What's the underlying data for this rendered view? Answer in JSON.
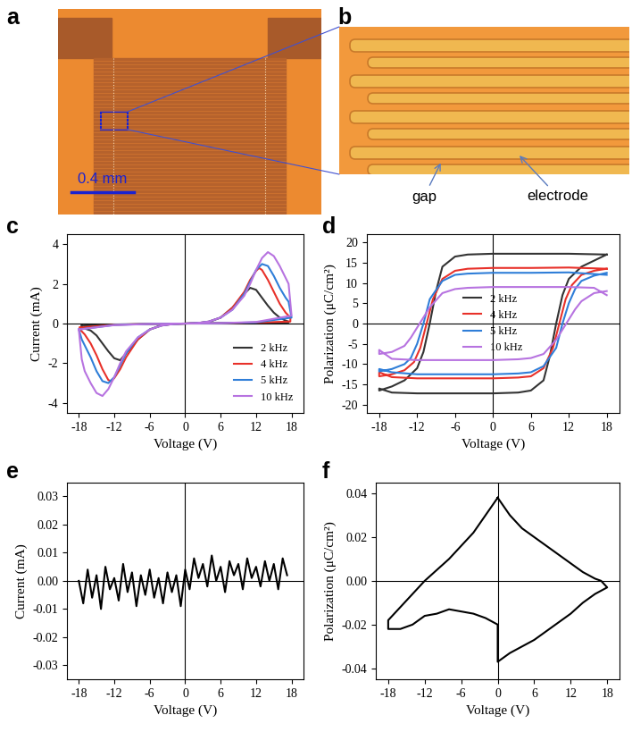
{
  "panel_labels": [
    "a",
    "b",
    "c",
    "d",
    "e",
    "f"
  ],
  "micrographs": {
    "scale_bar": "0.4 mm",
    "labels": [
      "gap",
      "electrode"
    ]
  },
  "chart_data": [
    {
      "type": "line",
      "xlabel": "Voltage (V)",
      "ylabel": "Current (mA)",
      "xlim": [
        -20,
        20
      ],
      "xticks": [
        -18,
        -12,
        -6,
        0,
        6,
        12,
        18
      ],
      "ylim": [
        -4.5,
        4.5
      ],
      "yticks": [
        -4,
        -2,
        0,
        2,
        4
      ],
      "legend": "lower right",
      "series": [
        {
          "name": "2 kHz",
          "color": "#333333",
          "x": [
            -17.5,
            -12,
            -6,
            0,
            2,
            4,
            6,
            8,
            10,
            11,
            12,
            13,
            14,
            15,
            16,
            17,
            17.5,
            17.5,
            12,
            6,
            0,
            -2,
            -4,
            -6,
            -8,
            -10,
            -11,
            -12,
            -13,
            -14,
            -15,
            -16,
            -17.5,
            -17.5
          ],
          "values": [
            -0.1,
            -0.05,
            -0.02,
            0,
            0.02,
            0.08,
            0.3,
            0.8,
            1.5,
            1.8,
            1.7,
            1.3,
            0.9,
            0.55,
            0.3,
            0.15,
            0.1,
            0.05,
            0.04,
            0.02,
            0,
            -0.02,
            -0.08,
            -0.3,
            -0.8,
            -1.5,
            -1.85,
            -1.75,
            -1.4,
            -1.0,
            -0.6,
            -0.35,
            -0.2,
            -0.1
          ]
        },
        {
          "name": "4 kHz",
          "color": "#e8312a",
          "x": [
            -17.8,
            -12,
            -6,
            0,
            2,
            4,
            6,
            8,
            10,
            11,
            12,
            12.5,
            13,
            14,
            15,
            16,
            17,
            17.8,
            17.8,
            12,
            6,
            0,
            -2,
            -4,
            -6,
            -8,
            -10,
            -11,
            -12,
            -12.5,
            -13,
            -14,
            -15,
            -16,
            -17,
            -17.8,
            -17.8
          ],
          "values": [
            -0.2,
            -0.06,
            -0.02,
            0,
            0.02,
            0.1,
            0.3,
            0.8,
            1.6,
            2.2,
            2.65,
            2.8,
            2.7,
            2.2,
            1.6,
            1.0,
            0.55,
            0.3,
            0.1,
            0.05,
            0.02,
            0,
            -0.02,
            -0.1,
            -0.3,
            -0.8,
            -1.7,
            -2.3,
            -2.75,
            -2.9,
            -2.85,
            -2.3,
            -1.6,
            -1.0,
            -0.55,
            -0.3,
            -0.2
          ]
        },
        {
          "name": "5 kHz",
          "color": "#2f7ed8",
          "x": [
            -18,
            -12,
            -6,
            0,
            2,
            4,
            6,
            8,
            10,
            11,
            12,
            13,
            14,
            15,
            16,
            17,
            17.5,
            18,
            12,
            6,
            0,
            -2,
            -4,
            -6,
            -8,
            -10,
            -11,
            -12,
            -13,
            -14,
            -15,
            -16,
            -17,
            -17.5,
            -18
          ],
          "values": [
            -0.3,
            -0.07,
            -0.02,
            0,
            0.02,
            0.1,
            0.3,
            0.7,
            1.5,
            2.1,
            2.7,
            3.0,
            2.9,
            2.4,
            1.8,
            1.3,
            1.1,
            0.3,
            0.06,
            0.02,
            0,
            -0.02,
            -0.1,
            -0.3,
            -0.7,
            -1.5,
            -2.1,
            -2.7,
            -3.0,
            -2.9,
            -2.4,
            -1.7,
            -1.1,
            -0.8,
            -0.3
          ]
        },
        {
          "name": "10 kHz",
          "color": "#b773e0",
          "x": [
            -18,
            -12,
            -6,
            0,
            2,
            4,
            6,
            8,
            10,
            11,
            12,
            13,
            14,
            15,
            16,
            17,
            17.5,
            18,
            12,
            6,
            0,
            -2,
            -4,
            -6,
            -8,
            -10,
            -11,
            -12,
            -13,
            -14,
            -15,
            -16,
            -17,
            -17.5,
            -18
          ],
          "values": [
            -0.3,
            -0.08,
            -0.02,
            0,
            0.02,
            0.1,
            0.3,
            0.7,
            1.4,
            2.0,
            2.7,
            3.3,
            3.6,
            3.4,
            2.9,
            2.3,
            2.0,
            0.4,
            0.08,
            0.02,
            0,
            -0.02,
            -0.1,
            -0.3,
            -0.7,
            -1.4,
            -2.0,
            -2.7,
            -3.3,
            -3.65,
            -3.5,
            -3.0,
            -2.4,
            -1.8,
            -0.3
          ]
        }
      ]
    },
    {
      "type": "line",
      "xlabel": "Voltage (V)",
      "ylabel": "Polarization (μC/cm²)",
      "xlim": [
        -20,
        20
      ],
      "xticks": [
        -18,
        -12,
        -6,
        0,
        6,
        12,
        18
      ],
      "ylim": [
        -22,
        22
      ],
      "yticks": [
        -20,
        -15,
        -10,
        -5,
        0,
        5,
        10,
        15,
        20
      ],
      "legend": "center",
      "series": [
        {
          "name": "2 kHz",
          "color": "#333333",
          "x": [
            18,
            12,
            6,
            0,
            -4,
            -6,
            -8,
            -9,
            -10,
            -11,
            -12,
            -14,
            -16,
            -18,
            -18,
            -16,
            -12,
            -6,
            0,
            4,
            6,
            8,
            9,
            10,
            11,
            12,
            14,
            16,
            18
          ],
          "values": [
            17,
            17.2,
            17.2,
            17.2,
            17,
            16.5,
            14,
            8,
            0,
            -7,
            -11,
            -14,
            -15.5,
            -16.5,
            -16,
            -17,
            -17.2,
            -17.2,
            -17.2,
            -17,
            -16.5,
            -14,
            -8,
            0,
            7,
            11,
            14,
            15.5,
            17
          ]
        },
        {
          "name": "4 kHz",
          "color": "#e8312a",
          "x": [
            18,
            12,
            6,
            0,
            -4,
            -6,
            -8,
            -9.5,
            -10.5,
            -11.5,
            -12.5,
            -14,
            -16,
            -18,
            -18,
            -16,
            -12,
            -6,
            0,
            4,
            6,
            8,
            9.5,
            10.5,
            11.5,
            12.5,
            14,
            16,
            18
          ],
          "values": [
            13.5,
            13.8,
            13.7,
            13.7,
            13.5,
            13,
            11,
            6,
            0,
            -6,
            -9.5,
            -11.5,
            -12.5,
            -13,
            -12,
            -13.2,
            -13.5,
            -13.5,
            -13.5,
            -13.3,
            -13,
            -11,
            -6,
            0,
            6,
            9.5,
            12,
            13,
            13.5
          ]
        },
        {
          "name": "5 kHz",
          "color": "#2f7ed8",
          "x": [
            18,
            12,
            6,
            0,
            -4,
            -6,
            -8,
            -10,
            -11,
            -12,
            -13,
            -14,
            -16,
            -18,
            -18,
            -16,
            -12,
            -6,
            0,
            4,
            6,
            8,
            10,
            11,
            12,
            13,
            14,
            16,
            18
          ],
          "values": [
            12,
            12.6,
            12.5,
            12.5,
            12.3,
            12,
            10.5,
            6,
            0,
            -5,
            -8.5,
            -10,
            -11.2,
            -11.8,
            -11.2,
            -12,
            -12.5,
            -12.5,
            -12.5,
            -12.3,
            -12,
            -10.5,
            -6,
            0,
            5,
            8.5,
            10.5,
            11.8,
            12.5
          ]
        },
        {
          "name": "10 kHz",
          "color": "#b773e0",
          "x": [
            18,
            16,
            12,
            6,
            0,
            -4,
            -6,
            -8,
            -10,
            -11,
            -12,
            -13,
            -14,
            -16,
            -18,
            -18,
            -16,
            -12,
            -6,
            0,
            4,
            6,
            8,
            10,
            11,
            12,
            13,
            14,
            16,
            18
          ],
          "values": [
            7,
            8.8,
            9,
            9,
            9,
            8.8,
            8.5,
            7.5,
            4,
            1.5,
            -1,
            -3.5,
            -5.5,
            -7,
            -7.5,
            -6.5,
            -8.7,
            -9,
            -9,
            -9,
            -8.8,
            -8.5,
            -7.5,
            -4,
            -1.5,
            1,
            3.5,
            5.5,
            7.5,
            8
          ]
        }
      ]
    },
    {
      "type": "line",
      "xlabel": "Voltage (V)",
      "ylabel": "Current (mA)",
      "xlim": [
        -20,
        20
      ],
      "xticks": [
        -18,
        -12,
        -6,
        0,
        6,
        12,
        18
      ],
      "ylim": [
        -0.035,
        0.035
      ],
      "yticks": [
        {
          "value": -0.03,
          "label": "-0.03"
        },
        {
          "value": -0.02,
          "label": "-0.02"
        },
        {
          "value": -0.01,
          "label": "-0.01"
        },
        {
          "value": 0,
          "label": "0.00"
        },
        {
          "value": 0.01,
          "label": "0.01"
        },
        {
          "value": 0.02,
          "label": "0.02"
        },
        {
          "value": 0.03,
          "label": "0.03"
        }
      ],
      "series": [
        {
          "color": "#000000",
          "x": [
            -18,
            -17.25,
            -16.5,
            -15.75,
            -15,
            -14.25,
            -13.5,
            -12.75,
            -12,
            -11.25,
            -10.5,
            -9.75,
            -9,
            -8.25,
            -7.5,
            -6.75,
            -6,
            -5.25,
            -4.5,
            -3.75,
            -3,
            -2.25,
            -1.5,
            -0.75,
            0,
            0.75,
            1.5,
            2.25,
            3,
            3.75,
            4.5,
            5.25,
            6,
            6.75,
            7.5,
            8.25,
            9,
            9.75,
            10.5,
            11.25,
            12,
            12.75,
            13.5,
            14.25,
            15,
            15.75,
            16.5,
            17.25
          ],
          "values": [
            0.0,
            -0.008,
            0.004,
            -0.006,
            0.002,
            -0.01,
            0.005,
            -0.003,
            0.001,
            -0.007,
            0.006,
            -0.004,
            0.003,
            -0.009,
            0.002,
            -0.005,
            0.004,
            -0.006,
            0.001,
            -0.008,
            0.003,
            -0.004,
            0.002,
            -0.009,
            0.004,
            -0.003,
            0.008,
            0.001,
            0.006,
            -0.002,
            0.009,
            0.0,
            0.005,
            -0.004,
            0.007,
            0.002,
            0.006,
            -0.003,
            0.008,
            0.001,
            0.005,
            -0.002,
            0.007,
            0.0,
            0.006,
            -0.003,
            0.008,
            0.002
          ]
        }
      ]
    },
    {
      "type": "line",
      "xlabel": "Voltage (V)",
      "ylabel": "Polarization (μC/cm²)",
      "xlim": [
        -20,
        20
      ],
      "xticks": [
        -18,
        -12,
        -6,
        0,
        6,
        12,
        18
      ],
      "ylim": [
        -0.045,
        0.045
      ],
      "yticks": [
        {
          "value": -0.04,
          "label": "-0.04"
        },
        {
          "value": -0.02,
          "label": "-0.02"
        },
        {
          "value": 0,
          "label": "0.00"
        },
        {
          "value": 0.02,
          "label": "0.02"
        },
        {
          "value": 0.04,
          "label": "0.04"
        }
      ],
      "series": [
        {
          "color": "#000000",
          "x": [
            0,
            2,
            4,
            6,
            8,
            10,
            12,
            14,
            16,
            17,
            18,
            16,
            14,
            12,
            10,
            8,
            6,
            4,
            2,
            0,
            0,
            -2,
            -4,
            -6,
            -8,
            -10,
            -12,
            -14,
            -16,
            -18,
            -18,
            -16,
            -14,
            -12,
            -10,
            -8,
            -6,
            -4,
            -2,
            0
          ],
          "values": [
            0.038,
            0.03,
            0.024,
            0.02,
            0.016,
            0.012,
            0.008,
            0.004,
            0.001,
            0.0,
            -0.003,
            -0.006,
            -0.01,
            -0.015,
            -0.019,
            -0.023,
            -0.027,
            -0.03,
            -0.033,
            -0.037,
            -0.02,
            -0.017,
            -0.015,
            -0.014,
            -0.013,
            -0.015,
            -0.016,
            -0.02,
            -0.022,
            -0.022,
            -0.018,
            -0.012,
            -0.006,
            0.0,
            0.005,
            0.01,
            0.016,
            0.022,
            0.03,
            0.038
          ]
        }
      ]
    }
  ]
}
